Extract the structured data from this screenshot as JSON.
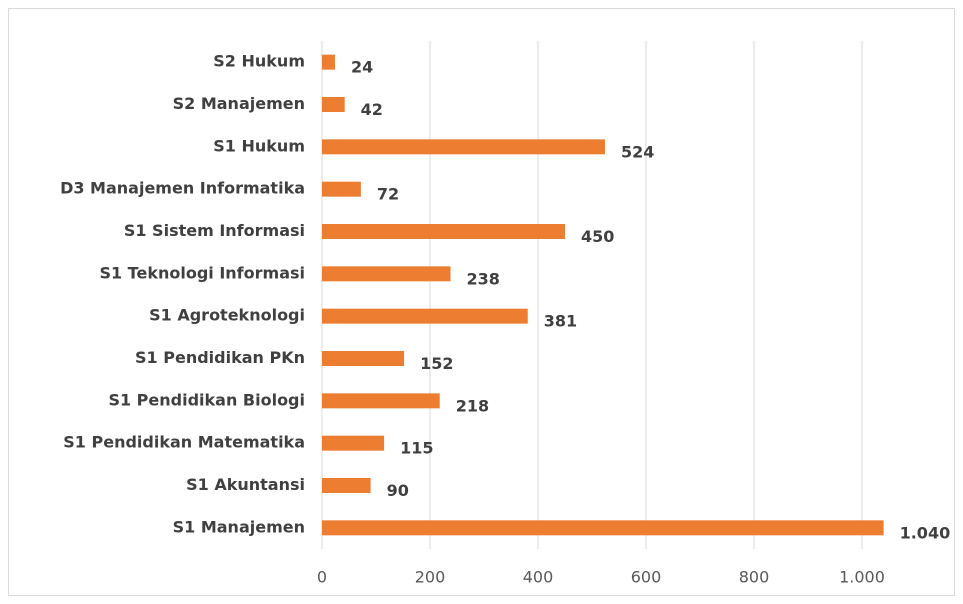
{
  "chart_data": {
    "type": "barh",
    "categories": [
      "S2 Hukum",
      "S2 Manajemen",
      "S1 Hukum",
      "D3 Manajemen Informatika",
      "S1 Sistem Informasi",
      "S1 Teknologi Informasi",
      "S1 Agroteknologi",
      "S1 Pendidikan PKn",
      "S1 Pendidikan Biologi",
      "S1 Pendidikan Matematika",
      "S1 Akuntansi",
      "S1 Manajemen"
    ],
    "values": [
      24,
      42,
      524,
      72,
      450,
      238,
      381,
      152,
      218,
      115,
      90,
      1040
    ],
    "value_labels": [
      "24",
      "42",
      "524",
      "72",
      "450",
      "238",
      "381",
      "152",
      "218",
      "115",
      "90",
      "1.040"
    ],
    "color": "#ed7d31",
    "xlim": [
      0,
      1100
    ],
    "xticks": [
      0,
      200,
      400,
      600,
      800,
      {
        "value": 1000,
        "label": "1.000"
      }
    ],
    "grid": true
  }
}
